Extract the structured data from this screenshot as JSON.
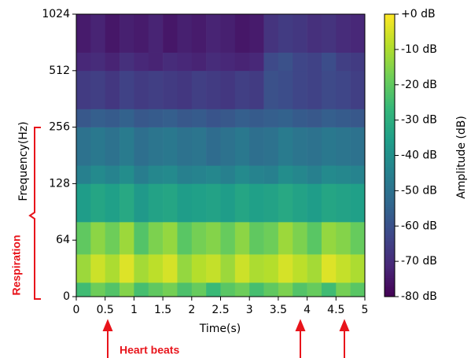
{
  "chart_data": {
    "type": "heatmap",
    "xlabel": "Time(s)",
    "ylabel": "Frequency(Hz)",
    "colorbar_label": "Amplitude (dB)",
    "annotations": [
      "Respiration",
      "Heart beats"
    ],
    "xlim": [
      0,
      5
    ],
    "xticks": [
      0,
      0.5,
      1,
      1.5,
      2,
      2.5,
      3,
      3.5,
      4,
      4.5,
      5
    ],
    "ylim": [
      0,
      1024
    ],
    "yscale": "symlog",
    "ybase": 2,
    "linthresh": 64,
    "yticks": [
      0,
      64,
      128,
      256,
      512,
      1024
    ],
    "clim": [
      -80,
      0
    ],
    "cticks": [
      {
        "value": 0,
        "label": "+0 dB"
      },
      {
        "value": -10,
        "label": "-10 dB"
      },
      {
        "value": -20,
        "label": "-20 dB"
      },
      {
        "value": -30,
        "label": "-30 dB"
      },
      {
        "value": -40,
        "label": "-40 dB"
      },
      {
        "value": -50,
        "label": "-50 dB"
      },
      {
        "value": -60,
        "label": "-60 dB"
      },
      {
        "value": -70,
        "label": "-70 dB"
      },
      {
        "value": -80,
        "label": "-80 dB"
      }
    ],
    "colormap": [
      "#440154",
      "#482878",
      "#3e4989",
      "#31688e",
      "#26828e",
      "#1f9e89",
      "#35b779",
      "#6ece58",
      "#b5de2b",
      "#fde725"
    ],
    "xbins": [
      0,
      0.25,
      0.5,
      0.75,
      1,
      1.25,
      1.5,
      1.75,
      2,
      2.25,
      2.5,
      2.75,
      3,
      3.25,
      3.5,
      3.75,
      4,
      4.25,
      4.5,
      4.75,
      5
    ],
    "ybins": [
      0,
      16,
      48,
      80,
      128,
      160,
      256,
      320,
      512,
      640,
      1024
    ],
    "z": [
      [
        -25,
        -18,
        -22,
        -15,
        -24,
        -20,
        -17,
        -23,
        -19,
        -26,
        -21,
        -18,
        -24,
        -20,
        -16,
        -22,
        -19,
        -25,
        -17,
        -21
      ],
      [
        -12,
        -6,
        -10,
        -4,
        -11,
        -8,
        -5,
        -13,
        -9,
        -7,
        -12,
        -6,
        -10,
        -9,
        -5,
        -8,
        -11,
        -4,
        -7,
        -10
      ],
      [
        -20,
        -14,
        -18,
        -12,
        -22,
        -16,
        -13,
        -21,
        -17,
        -15,
        -19,
        -14,
        -20,
        -18,
        -12,
        -16,
        -21,
        -13,
        -15,
        -19
      ],
      [
        -36,
        -33,
        -35,
        -32,
        -37,
        -34,
        -33,
        -36,
        -35,
        -34,
        -36,
        -33,
        -35,
        -34,
        -32,
        -34,
        -36,
        -33,
        -34,
        -35
      ],
      [
        -45,
        -42,
        -44,
        -41,
        -46,
        -43,
        -42,
        -45,
        -44,
        -43,
        -45,
        -42,
        -44,
        -45,
        -41,
        -43,
        -45,
        -42,
        -43,
        -44
      ],
      [
        -50,
        -48,
        -50,
        -47,
        -51,
        -49,
        -48,
        -50,
        -49,
        -52,
        -50,
        -48,
        -51,
        -50,
        -47,
        -49,
        -50,
        -48,
        -49,
        -50
      ],
      [
        -58,
        -56,
        -57,
        -55,
        -58,
        -57,
        -56,
        -58,
        -57,
        -59,
        -58,
        -56,
        -57,
        -56,
        -55,
        -57,
        -58,
        -56,
        -57,
        -58
      ],
      [
        -66,
        -65,
        -67,
        -64,
        -66,
        -65,
        -66,
        -67,
        -65,
        -66,
        -67,
        -65,
        -66,
        -60,
        -61,
        -63,
        -64,
        -62,
        -63,
        -65
      ],
      [
        -71,
        -70,
        -72,
        -69,
        -71,
        -72,
        -70,
        -71,
        -72,
        -70,
        -71,
        -72,
        -71,
        -62,
        -60,
        -63,
        -64,
        -61,
        -65,
        -66
      ],
      [
        -74,
        -72,
        -75,
        -73,
        -74,
        -72,
        -75,
        -73,
        -74,
        -72,
        -73,
        -75,
        -74,
        -68,
        -66,
        -67,
        -69,
        -68,
        -70,
        -71
      ]
    ]
  }
}
